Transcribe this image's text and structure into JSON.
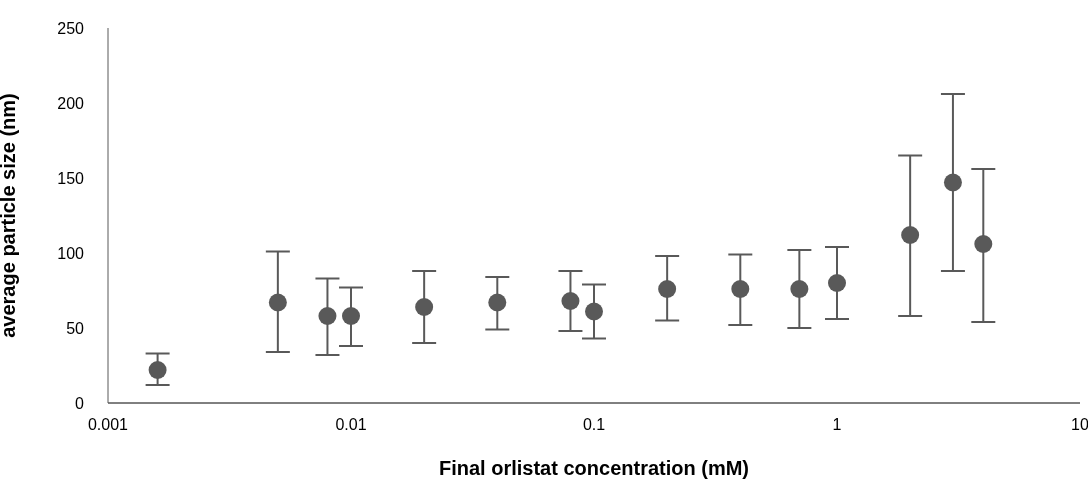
{
  "chart_data": {
    "type": "scatter",
    "xlabel": "Final orlistat concentration (mM)",
    "ylabel": "average particle size (nm)",
    "log": "x",
    "xlim": [
      0.001,
      10
    ],
    "xticks": [
      0.001,
      0.01,
      0.1,
      1,
      10
    ],
    "ylim": [
      0,
      250
    ],
    "yticks": [
      0,
      50,
      100,
      150,
      200,
      250
    ],
    "grid": false,
    "legend": false,
    "marker": "circle",
    "series": [
      {
        "color": "#595959",
        "x": [
          0.0016,
          0.005,
          0.008,
          0.01,
          0.02,
          0.04,
          0.08,
          0.1,
          0.2,
          0.4,
          0.7,
          1,
          2,
          3,
          4
        ],
        "values": [
          22,
          67,
          58,
          58,
          64,
          67,
          68,
          61,
          76,
          76,
          76,
          80,
          112,
          147,
          106
        ],
        "errors": [
          [
            12,
            33
          ],
          [
            34,
            101
          ],
          [
            32,
            83
          ],
          [
            38,
            77
          ],
          [
            40,
            88
          ],
          [
            49,
            84
          ],
          [
            48,
            88
          ],
          [
            43,
            79
          ],
          [
            55,
            98
          ],
          [
            52,
            99
          ],
          [
            50,
            102
          ],
          [
            56,
            104
          ],
          [
            58,
            165
          ],
          [
            88,
            206
          ],
          [
            54,
            156
          ]
        ]
      }
    ]
  }
}
